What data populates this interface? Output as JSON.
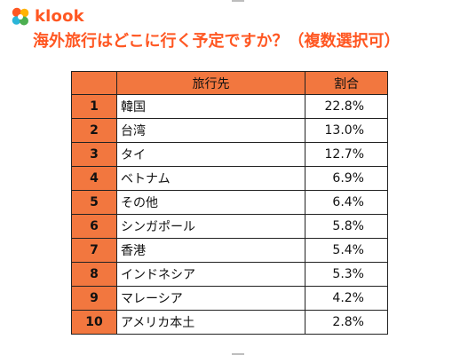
{
  "brand": {
    "name": "klook",
    "color": "#ff5722",
    "mark_colors": [
      "#ff5722",
      "#ffb300",
      "#2bb5d8",
      "#4caf50"
    ]
  },
  "title": "海外旅行はどこに行く予定ですか？（複数選択可）",
  "table": {
    "header_color": "#f2773f",
    "columns": [
      "",
      "旅行先",
      "割合"
    ],
    "rows": [
      {
        "rank": "1",
        "destination": "韓国",
        "share": "22.8%"
      },
      {
        "rank": "2",
        "destination": "台湾",
        "share": "13.0%"
      },
      {
        "rank": "3",
        "destination": "タイ",
        "share": "12.7%"
      },
      {
        "rank": "4",
        "destination": "ベトナム",
        "share": "6.9%"
      },
      {
        "rank": "5",
        "destination": "その他",
        "share": "6.4%"
      },
      {
        "rank": "6",
        "destination": "シンガポール",
        "share": "5.8%"
      },
      {
        "rank": "7",
        "destination": "香港",
        "share": "5.4%"
      },
      {
        "rank": "8",
        "destination": "インドネシア",
        "share": "5.3%"
      },
      {
        "rank": "9",
        "destination": "マレーシア",
        "share": "4.2%"
      },
      {
        "rank": "10",
        "destination": "アメリカ本土",
        "share": "2.8%"
      }
    ]
  },
  "chart_data": {
    "type": "table",
    "title": "海外旅行はどこに行く予定ですか？（複数選択可）",
    "columns": [
      "",
      "旅行先",
      "割合"
    ],
    "categories": [
      "韓国",
      "台湾",
      "タイ",
      "ベトナム",
      "その他",
      "シンガポール",
      "香港",
      "インドネシア",
      "マレーシア",
      "アメリカ本土"
    ],
    "series": [
      {
        "name": "割合",
        "values": [
          22.8,
          13.0,
          12.7,
          6.9,
          6.4,
          5.8,
          5.4,
          5.3,
          4.2,
          2.8
        ]
      }
    ]
  }
}
